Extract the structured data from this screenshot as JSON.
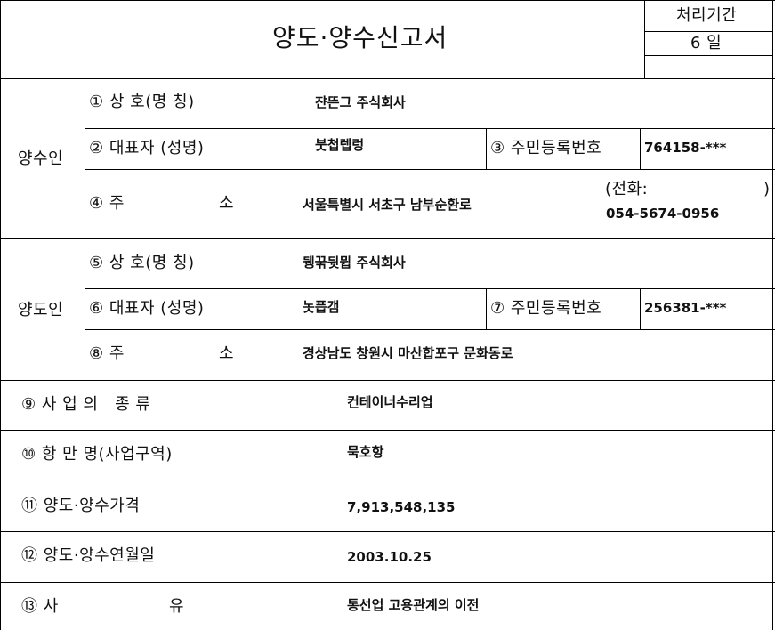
{
  "header": {
    "title": "양도·양수신고서",
    "processing_label": "처리기간",
    "processing_value": "6 일"
  },
  "transferee": {
    "group_label": "양수인",
    "company_label": "① 상 호(명 칭)",
    "company_value": "쟌뜬그 주식회사",
    "rep_label": "② 대표자 (성명)",
    "rep_value": "붓첩렙렁",
    "id_label": "③ 주민등록번호",
    "id_value": "764158-***",
    "addr_label_num": "④ 주",
    "addr_label_end": "소",
    "addr_value": "서울특별시 서초구 남부순환로",
    "phone_label_open": "(전화:",
    "phone_label_close": ")",
    "phone_value": "054-5674-0956"
  },
  "transferor": {
    "group_label": "양도인",
    "company_label": "⑤ 상 호(명 칭)",
    "company_value": "뒝꾺뒷뮙 주식회사",
    "rep_label": "⑥ 대표자 (성명)",
    "rep_value": "놋픕갬",
    "id_label": "⑦ 주민등록번호",
    "id_value": "256381-***",
    "addr_label_num": "⑧ 주",
    "addr_label_end": "소",
    "addr_value": "경상남도 창원시 마산합포구 문화동로"
  },
  "details": {
    "business_type_label": "⑨ 사 업 의   종 류",
    "business_type_value": "컨테이너수리업",
    "port_label": "⑩ 항 만 명(사업구역)",
    "port_value": "묵호항",
    "price_label": "⑪ 양도·양수가격",
    "price_value": "7,913,548,135",
    "date_label": "⑫ 양도·양수연월일",
    "date_value": "2003.10.25",
    "reason_label_num": "⑬ 사",
    "reason_label_end": "유",
    "reason_value": "통선업 고용관계의 이전"
  }
}
